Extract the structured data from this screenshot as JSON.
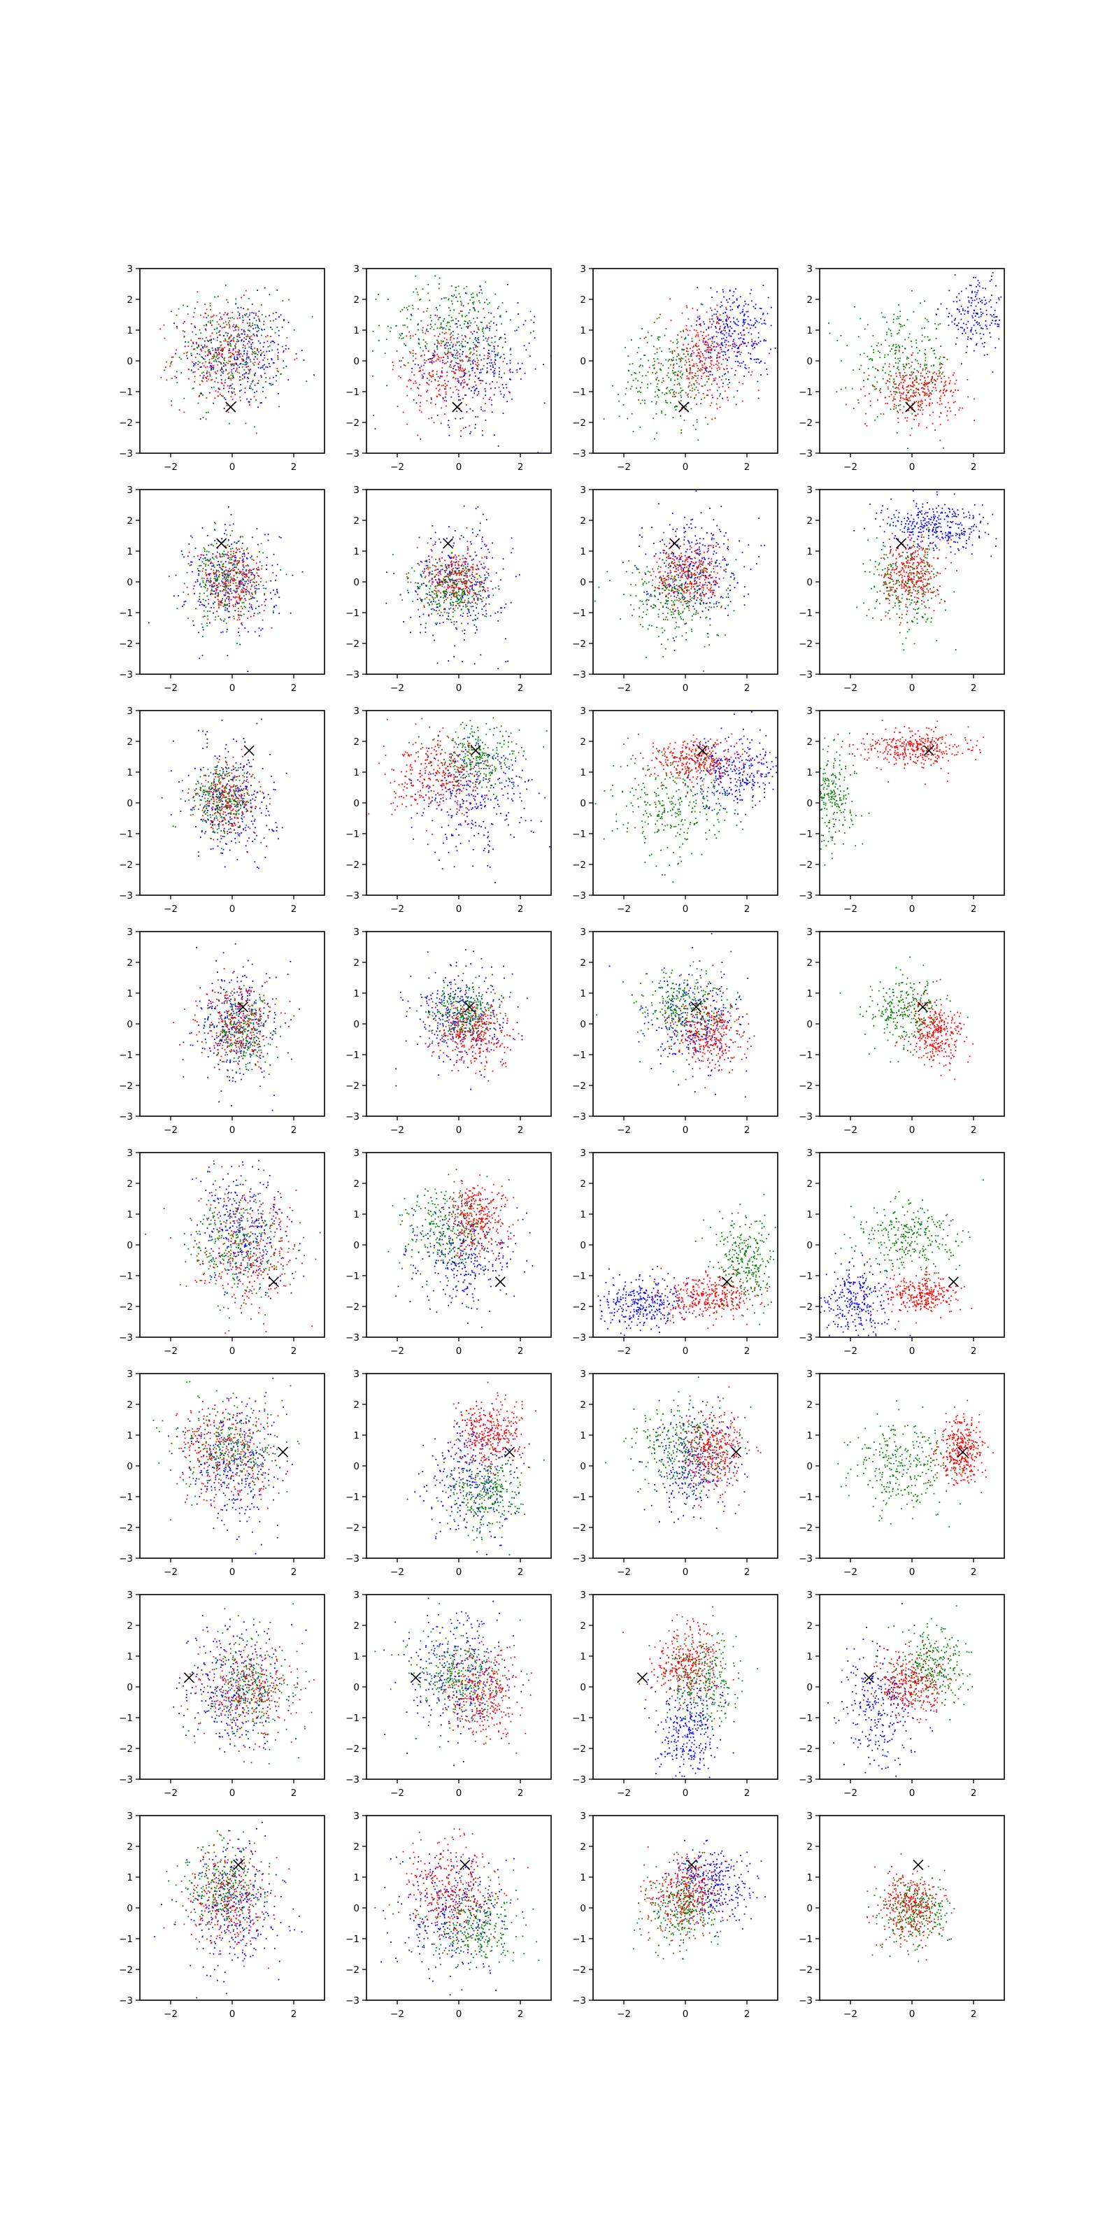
{
  "colors": {
    "series_1": "#0000ff",
    "series_2": "#008000",
    "series_3": "#ff0000",
    "marker": "#000000"
  },
  "chart_data": {
    "type": "scatter",
    "layout": {
      "rows": 8,
      "cols": 4
    },
    "xlim": [
      -3,
      3
    ],
    "ylim": [
      -3,
      3
    ],
    "xticks": [
      -2,
      0,
      2
    ],
    "yticks": [
      3,
      2,
      1,
      0,
      -1,
      -2,
      -3
    ],
    "x_tick_labels": [
      "−2",
      "0",
      "2"
    ],
    "y_tick_labels": [
      "3",
      "2",
      "1",
      "0",
      "−1",
      "−2",
      "−3"
    ],
    "grid": false,
    "marker_symbol": "x",
    "markers": [
      {
        "x": -0.05,
        "y": -1.5
      },
      {
        "x": -0.35,
        "y": 1.25
      },
      {
        "x": 0.55,
        "y": 1.7
      },
      {
        "x": 0.35,
        "y": 0.55
      },
      {
        "x": 1.35,
        "y": -1.2
      },
      {
        "x": 1.65,
        "y": 0.45
      },
      {
        "x": -1.4,
        "y": 0.3
      },
      {
        "x": 0.2,
        "y": 1.4
      }
    ],
    "panels": [
      {
        "row": 0,
        "col": 0,
        "clusters": [
          {
            "color": "blue",
            "cx": 0.3,
            "cy": 0.2,
            "sx": 0.85,
            "sy": 0.9,
            "n": 300
          },
          {
            "color": "green",
            "cx": -0.1,
            "cy": 0.3,
            "sx": 0.9,
            "sy": 0.85,
            "n": 280
          },
          {
            "color": "red",
            "cx": -0.3,
            "cy": 0.2,
            "sx": 0.8,
            "sy": 0.85,
            "n": 280
          }
        ]
      },
      {
        "row": 0,
        "col": 1,
        "clusters": [
          {
            "color": "green",
            "cx": -0.1,
            "cy": 1.1,
            "sx": 1.1,
            "sy": 0.8,
            "n": 320
          },
          {
            "color": "blue",
            "cx": 0.5,
            "cy": -0.1,
            "sx": 1.0,
            "sy": 1.0,
            "n": 300
          },
          {
            "color": "red",
            "cx": -0.4,
            "cy": -0.3,
            "sx": 0.8,
            "sy": 0.8,
            "n": 280
          }
        ]
      },
      {
        "row": 0,
        "col": 2,
        "clusters": [
          {
            "color": "blue",
            "cx": 1.6,
            "cy": 0.9,
            "sx": 0.6,
            "sy": 0.8,
            "n": 320
          },
          {
            "color": "green",
            "cx": -0.5,
            "cy": -0.5,
            "sx": 0.8,
            "sy": 0.8,
            "n": 280
          },
          {
            "color": "red",
            "cx": 0.6,
            "cy": 0.1,
            "sx": 0.7,
            "sy": 0.8,
            "n": 300
          }
        ]
      },
      {
        "row": 0,
        "col": 3,
        "clusters": [
          {
            "color": "blue",
            "cx": 2.1,
            "cy": 1.5,
            "sx": 0.6,
            "sy": 0.6,
            "n": 200
          },
          {
            "color": "green",
            "cx": -0.3,
            "cy": -0.1,
            "sx": 0.8,
            "sy": 0.8,
            "n": 280
          },
          {
            "color": "red",
            "cx": 0.2,
            "cy": -1.0,
            "sx": 0.7,
            "sy": 0.45,
            "n": 300
          }
        ]
      },
      {
        "row": 1,
        "col": 0,
        "clusters": [
          {
            "color": "blue",
            "cx": 0.0,
            "cy": 0.0,
            "sx": 0.75,
            "sy": 0.9,
            "n": 300
          },
          {
            "color": "green",
            "cx": -0.2,
            "cy": 0.0,
            "sx": 0.6,
            "sy": 0.7,
            "n": 280
          },
          {
            "color": "red",
            "cx": 0.0,
            "cy": 0.0,
            "sx": 0.55,
            "sy": 0.6,
            "n": 260
          }
        ]
      },
      {
        "row": 1,
        "col": 1,
        "clusters": [
          {
            "color": "blue",
            "cx": 0.0,
            "cy": 0.0,
            "sx": 0.8,
            "sy": 0.95,
            "n": 300
          },
          {
            "color": "red",
            "cx": -0.1,
            "cy": 0.1,
            "sx": 0.5,
            "sy": 0.5,
            "n": 300
          },
          {
            "color": "green",
            "cx": -0.2,
            "cy": -0.3,
            "sx": 0.6,
            "sy": 0.55,
            "n": 260
          }
        ]
      },
      {
        "row": 1,
        "col": 2,
        "clusters": [
          {
            "color": "blue",
            "cx": 0.2,
            "cy": 0.6,
            "sx": 0.8,
            "sy": 0.8,
            "n": 300
          },
          {
            "color": "green",
            "cx": -0.3,
            "cy": -0.5,
            "sx": 0.9,
            "sy": 0.7,
            "n": 300
          },
          {
            "color": "red",
            "cx": 0.1,
            "cy": 0.2,
            "sx": 0.55,
            "sy": 0.55,
            "n": 300
          }
        ]
      },
      {
        "row": 1,
        "col": 3,
        "clusters": [
          {
            "color": "blue",
            "cx": 0.8,
            "cy": 1.8,
            "sx": 0.9,
            "sy": 0.4,
            "n": 340
          },
          {
            "color": "green",
            "cx": -0.2,
            "cy": -0.2,
            "sx": 0.6,
            "sy": 0.7,
            "n": 260
          },
          {
            "color": "red",
            "cx": 0.0,
            "cy": 0.3,
            "sx": 0.45,
            "sy": 0.55,
            "n": 300
          }
        ]
      },
      {
        "row": 2,
        "col": 0,
        "clusters": [
          {
            "color": "blue",
            "cx": 0.0,
            "cy": 0.1,
            "sx": 0.7,
            "sy": 1.0,
            "n": 300
          },
          {
            "color": "red",
            "cx": -0.1,
            "cy": 0.1,
            "sx": 0.5,
            "sy": 0.6,
            "n": 260
          },
          {
            "color": "green",
            "cx": -0.3,
            "cy": 0.1,
            "sx": 0.5,
            "sy": 0.55,
            "n": 260
          }
        ]
      },
      {
        "row": 2,
        "col": 1,
        "clusters": [
          {
            "color": "blue",
            "cx": 0.4,
            "cy": 0.2,
            "sx": 1.0,
            "sy": 0.95,
            "n": 300
          },
          {
            "color": "green",
            "cx": 0.6,
            "cy": 1.4,
            "sx": 0.7,
            "sy": 0.55,
            "n": 280
          },
          {
            "color": "red",
            "cx": -0.6,
            "cy": 0.8,
            "sx": 0.8,
            "sy": 0.6,
            "n": 300
          }
        ]
      },
      {
        "row": 2,
        "col": 2,
        "clusters": [
          {
            "color": "blue",
            "cx": 1.6,
            "cy": 1.0,
            "sx": 0.7,
            "sy": 0.6,
            "n": 300
          },
          {
            "color": "green",
            "cx": -0.4,
            "cy": -0.1,
            "sx": 0.9,
            "sy": 0.8,
            "n": 300
          },
          {
            "color": "red",
            "cx": 0.4,
            "cy": 1.4,
            "sx": 0.8,
            "sy": 0.35,
            "n": 320
          }
        ]
      },
      {
        "row": 2,
        "col": 3,
        "clusters": [
          {
            "color": "green",
            "cx": -2.6,
            "cy": 0.2,
            "sx": 0.4,
            "sy": 0.8,
            "n": 260
          },
          {
            "color": "red",
            "cx": 0.1,
            "cy": 1.8,
            "sx": 0.8,
            "sy": 0.3,
            "n": 340
          }
        ]
      },
      {
        "row": 3,
        "col": 0,
        "clusters": [
          {
            "color": "blue",
            "cx": 0.2,
            "cy": -0.1,
            "sx": 0.7,
            "sy": 0.9,
            "n": 300
          },
          {
            "color": "green",
            "cx": 0.3,
            "cy": -0.2,
            "sx": 0.5,
            "sy": 0.65,
            "n": 260
          },
          {
            "color": "red",
            "cx": 0.2,
            "cy": 0.0,
            "sx": 0.6,
            "sy": 0.65,
            "n": 260
          }
        ]
      },
      {
        "row": 3,
        "col": 1,
        "clusters": [
          {
            "color": "blue",
            "cx": 0.0,
            "cy": 0.2,
            "sx": 0.8,
            "sy": 0.8,
            "n": 300
          },
          {
            "color": "green",
            "cx": 0.2,
            "cy": 0.4,
            "sx": 0.55,
            "sy": 0.45,
            "n": 280
          },
          {
            "color": "red",
            "cx": 0.5,
            "cy": -0.3,
            "sx": 0.6,
            "sy": 0.5,
            "n": 300
          }
        ]
      },
      {
        "row": 3,
        "col": 2,
        "clusters": [
          {
            "color": "blue",
            "cx": 0.3,
            "cy": 0.0,
            "sx": 0.8,
            "sy": 0.9,
            "n": 280
          },
          {
            "color": "green",
            "cx": -0.1,
            "cy": 0.5,
            "sx": 0.75,
            "sy": 0.6,
            "n": 300
          },
          {
            "color": "red",
            "cx": 0.8,
            "cy": -0.4,
            "sx": 0.55,
            "sy": 0.55,
            "n": 300
          }
        ]
      },
      {
        "row": 3,
        "col": 3,
        "clusters": [
          {
            "color": "green",
            "cx": -0.2,
            "cy": 0.4,
            "sx": 0.6,
            "sy": 0.6,
            "n": 280
          },
          {
            "color": "red",
            "cx": 0.8,
            "cy": -0.3,
            "sx": 0.45,
            "sy": 0.5,
            "n": 300
          }
        ]
      },
      {
        "row": 4,
        "col": 0,
        "clusters": [
          {
            "color": "blue",
            "cx": 0.4,
            "cy": 0.4,
            "sx": 0.7,
            "sy": 1.0,
            "n": 300
          },
          {
            "color": "green",
            "cx": 0.2,
            "cy": 0.0,
            "sx": 0.85,
            "sy": 0.85,
            "n": 280
          },
          {
            "color": "red",
            "cx": 0.5,
            "cy": -0.2,
            "sx": 0.85,
            "sy": 0.9,
            "n": 280
          }
        ]
      },
      {
        "row": 4,
        "col": 1,
        "clusters": [
          {
            "color": "blue",
            "cx": 0.1,
            "cy": -0.4,
            "sx": 0.8,
            "sy": 0.85,
            "n": 300
          },
          {
            "color": "green",
            "cx": -0.4,
            "cy": 0.5,
            "sx": 0.7,
            "sy": 0.7,
            "n": 280
          },
          {
            "color": "red",
            "cx": 0.6,
            "cy": 0.9,
            "sx": 0.5,
            "sy": 0.6,
            "n": 300
          }
        ]
      },
      {
        "row": 4,
        "col": 2,
        "clusters": [
          {
            "color": "blue",
            "cx": -1.3,
            "cy": -1.9,
            "sx": 0.7,
            "sy": 0.4,
            "n": 320
          },
          {
            "color": "green",
            "cx": 2.0,
            "cy": -0.5,
            "sx": 0.55,
            "sy": 0.7,
            "n": 300
          },
          {
            "color": "red",
            "cx": 0.7,
            "cy": -1.7,
            "sx": 0.7,
            "sy": 0.35,
            "n": 320
          }
        ]
      },
      {
        "row": 4,
        "col": 3,
        "clusters": [
          {
            "color": "blue",
            "cx": -1.8,
            "cy": -1.8,
            "sx": 0.6,
            "sy": 0.6,
            "n": 280
          },
          {
            "color": "green",
            "cx": -0.2,
            "cy": 0.2,
            "sx": 0.8,
            "sy": 0.6,
            "n": 300
          },
          {
            "color": "red",
            "cx": 0.3,
            "cy": -1.6,
            "sx": 0.6,
            "sy": 0.3,
            "n": 300
          }
        ]
      },
      {
        "row": 5,
        "col": 0,
        "clusters": [
          {
            "color": "blue",
            "cx": 0.0,
            "cy": 0.0,
            "sx": 0.75,
            "sy": 1.0,
            "n": 300
          },
          {
            "color": "green",
            "cx": -0.1,
            "cy": 0.6,
            "sx": 0.8,
            "sy": 0.8,
            "n": 280
          },
          {
            "color": "red",
            "cx": -0.2,
            "cy": 0.4,
            "sx": 0.85,
            "sy": 0.85,
            "n": 280
          }
        ]
      },
      {
        "row": 5,
        "col": 1,
        "clusters": [
          {
            "color": "blue",
            "cx": 0.4,
            "cy": -0.5,
            "sx": 0.7,
            "sy": 1.0,
            "n": 300
          },
          {
            "color": "green",
            "cx": 0.8,
            "cy": -0.9,
            "sx": 0.6,
            "sy": 0.6,
            "n": 280
          },
          {
            "color": "red",
            "cx": 1.0,
            "cy": 1.0,
            "sx": 0.5,
            "sy": 0.55,
            "n": 320
          }
        ]
      },
      {
        "row": 5,
        "col": 2,
        "clusters": [
          {
            "color": "blue",
            "cx": 0.2,
            "cy": 0.0,
            "sx": 0.7,
            "sy": 0.9,
            "n": 280
          },
          {
            "color": "green",
            "cx": 0.0,
            "cy": 0.6,
            "sx": 0.8,
            "sy": 0.7,
            "n": 300
          },
          {
            "color": "red",
            "cx": 0.9,
            "cy": 0.5,
            "sx": 0.5,
            "sy": 0.65,
            "n": 320
          }
        ]
      },
      {
        "row": 5,
        "col": 3,
        "clusters": [
          {
            "color": "green",
            "cx": -0.3,
            "cy": 0.0,
            "sx": 0.75,
            "sy": 0.7,
            "n": 300
          },
          {
            "color": "red",
            "cx": 1.6,
            "cy": 0.5,
            "sx": 0.35,
            "sy": 0.55,
            "n": 340
          }
        ]
      },
      {
        "row": 6,
        "col": 0,
        "clusters": [
          {
            "color": "blue",
            "cx": 0.0,
            "cy": 0.0,
            "sx": 0.85,
            "sy": 0.95,
            "n": 300
          },
          {
            "color": "green",
            "cx": 0.6,
            "cy": 0.0,
            "sx": 0.7,
            "sy": 0.8,
            "n": 280
          },
          {
            "color": "red",
            "cx": 0.5,
            "cy": -0.1,
            "sx": 0.8,
            "sy": 0.8,
            "n": 280
          }
        ]
      },
      {
        "row": 6,
        "col": 1,
        "clusters": [
          {
            "color": "blue",
            "cx": 0.0,
            "cy": 0.5,
            "sx": 0.8,
            "sy": 1.0,
            "n": 300
          },
          {
            "color": "green",
            "cx": 0.0,
            "cy": 0.3,
            "sx": 0.7,
            "sy": 0.75,
            "n": 280
          },
          {
            "color": "red",
            "cx": 0.8,
            "cy": -0.2,
            "sx": 0.6,
            "sy": 0.7,
            "n": 300
          }
        ]
      },
      {
        "row": 6,
        "col": 2,
        "clusters": [
          {
            "color": "blue",
            "cx": 0.1,
            "cy": -1.4,
            "sx": 0.5,
            "sy": 0.8,
            "n": 300
          },
          {
            "color": "green",
            "cx": 0.6,
            "cy": 0.2,
            "sx": 0.6,
            "sy": 0.75,
            "n": 280
          },
          {
            "color": "red",
            "cx": 0.0,
            "cy": 0.8,
            "sx": 0.55,
            "sy": 0.6,
            "n": 300
          }
        ]
      },
      {
        "row": 6,
        "col": 3,
        "clusters": [
          {
            "color": "blue",
            "cx": -1.0,
            "cy": -0.8,
            "sx": 0.6,
            "sy": 1.0,
            "n": 280
          },
          {
            "color": "green",
            "cx": 0.6,
            "cy": 0.7,
            "sx": 0.6,
            "sy": 0.6,
            "n": 280
          },
          {
            "color": "red",
            "cx": 0.0,
            "cy": 0.1,
            "sx": 0.55,
            "sy": 0.6,
            "n": 300
          }
        ]
      },
      {
        "row": 7,
        "col": 0,
        "clusters": [
          {
            "color": "blue",
            "cx": 0.1,
            "cy": 0.0,
            "sx": 0.7,
            "sy": 1.0,
            "n": 300
          },
          {
            "color": "green",
            "cx": -0.3,
            "cy": 0.6,
            "sx": 0.6,
            "sy": 0.7,
            "n": 280
          },
          {
            "color": "red",
            "cx": -0.2,
            "cy": 0.2,
            "sx": 0.7,
            "sy": 0.8,
            "n": 260
          }
        ]
      },
      {
        "row": 7,
        "col": 1,
        "clusters": [
          {
            "color": "blue",
            "cx": -0.2,
            "cy": -0.4,
            "sx": 0.9,
            "sy": 1.0,
            "n": 300
          },
          {
            "color": "green",
            "cx": 0.6,
            "cy": -0.6,
            "sx": 0.7,
            "sy": 0.6,
            "n": 280
          },
          {
            "color": "red",
            "cx": -0.2,
            "cy": 0.5,
            "sx": 0.75,
            "sy": 0.8,
            "n": 300
          }
        ]
      },
      {
        "row": 7,
        "col": 2,
        "clusters": [
          {
            "color": "blue",
            "cx": 0.9,
            "cy": 0.8,
            "sx": 0.7,
            "sy": 0.6,
            "n": 300
          },
          {
            "color": "green",
            "cx": -0.1,
            "cy": -0.1,
            "sx": 0.6,
            "sy": 0.6,
            "n": 280
          },
          {
            "color": "red",
            "cx": 0.0,
            "cy": 0.5,
            "sx": 0.6,
            "sy": 0.6,
            "n": 300
          }
        ]
      },
      {
        "row": 7,
        "col": 3,
        "clusters": [
          {
            "color": "green",
            "cx": 0.1,
            "cy": -0.1,
            "sx": 0.55,
            "sy": 0.6,
            "n": 280
          },
          {
            "color": "red",
            "cx": -0.1,
            "cy": 0.0,
            "sx": 0.5,
            "sy": 0.55,
            "n": 280
          }
        ]
      }
    ]
  }
}
